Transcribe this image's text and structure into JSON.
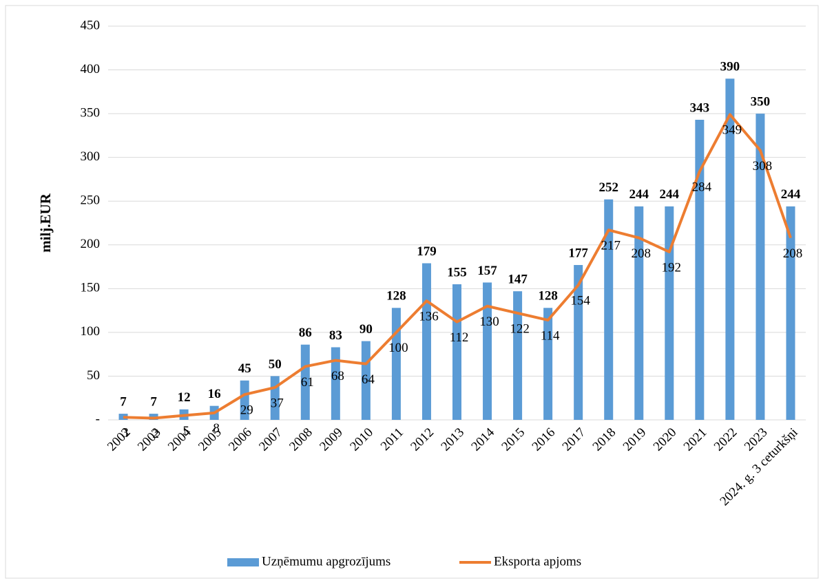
{
  "chart_data": {
    "type": "bar",
    "y_label": "milj.EUR",
    "categories": [
      "2002",
      "2003",
      "2004",
      "2005",
      "2006",
      "2007",
      "2008",
      "2009",
      "2010",
      "2011",
      "2012",
      "2013",
      "2014",
      "2015",
      "2016",
      "2017",
      "2018",
      "2019",
      "2020",
      "2021",
      "2022",
      "2023",
      "2024. g. 3 ceturkšņi"
    ],
    "series": [
      {
        "name": "Uzņēmumu apgrozījums",
        "type": "bar",
        "color": "#5b9bd5",
        "values": [
          7,
          7,
          12,
          16,
          45,
          50,
          86,
          83,
          90,
          128,
          179,
          155,
          157,
          147,
          128,
          177,
          252,
          244,
          244,
          343,
          390,
          350,
          244
        ]
      },
      {
        "name": "Eksporta apjoms",
        "type": "line",
        "color": "#ed7d31",
        "values": [
          3,
          2,
          5,
          8,
          29,
          37,
          61,
          68,
          64,
          100,
          136,
          112,
          130,
          122,
          114,
          154,
          217,
          208,
          192,
          284,
          349,
          308,
          208
        ]
      }
    ],
    "ylim": [
      0,
      450
    ],
    "yticks": [
      {
        "value": 0,
        "label": "-"
      },
      50,
      100,
      150,
      200,
      250,
      300,
      350,
      400,
      450
    ],
    "grid": true,
    "legend": "bottom"
  }
}
